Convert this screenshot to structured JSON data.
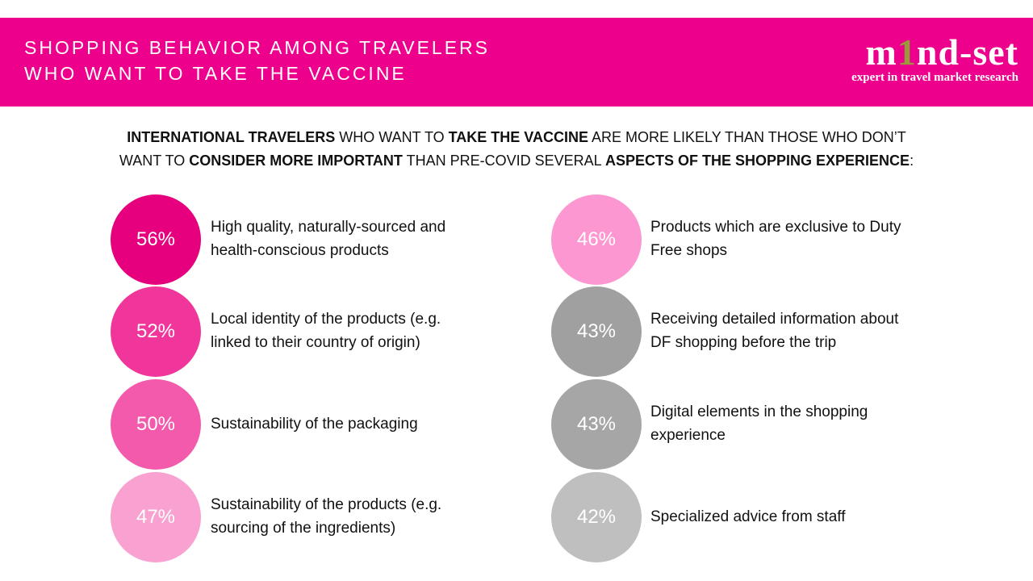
{
  "header": {
    "title_lines": [
      "SHOPPING BEHAVIOR AMONG TRAVELERS",
      "WHO WANT TO TAKE THE VACCINE"
    ],
    "logo": {
      "name_parts": [
        "m",
        "1",
        "nd-set"
      ],
      "tagline": "expert in travel market research"
    }
  },
  "subtitle": [
    [
      {
        "text": "INTERNATIONAL TRAVELERS",
        "bold": true
      },
      {
        "text": " WHO WANT TO ",
        "bold": false
      },
      {
        "text": "TAKE THE VACCINE",
        "bold": true
      },
      {
        "text": " ARE MORE LIKELY THAN THOSE WHO DON’T",
        "bold": false
      }
    ],
    [
      {
        "text": "WANT TO ",
        "bold": false
      },
      {
        "text": "CONSIDER MORE IMPORTANT",
        "bold": true
      },
      {
        "text": " THAN PRE-COVID SEVERAL ",
        "bold": false
      },
      {
        "text": "ASPECTS OF THE SHOPPING EXPERIENCE",
        "bold": true
      },
      {
        "text": ":",
        "bold": false
      }
    ]
  ],
  "columns": [
    [
      {
        "value": "56%",
        "color": "#e6007e",
        "lines": [
          "High quality, naturally-sourced and",
          "health-conscious products"
        ]
      },
      {
        "value": "52%",
        "color": "#f0369a",
        "lines": [
          "Local identity of the products (e.g.",
          "linked to their country of origin)"
        ]
      },
      {
        "value": "50%",
        "color": "#f45aab",
        "lines": [
          "Sustainability of the packaging"
        ]
      },
      {
        "value": "47%",
        "color": "#f9a1d0",
        "lines": [
          "Sustainability of the products (e.g.",
          "sourcing of the ingredients)"
        ]
      }
    ],
    [
      {
        "value": "46%",
        "color": "#fd97d1",
        "lines": [
          "Products which are exclusive to Duty",
          "Free shops"
        ]
      },
      {
        "value": "43%",
        "color": "#a0a0a0",
        "lines": [
          "Receiving detailed information about",
          "DF shopping before the trip"
        ]
      },
      {
        "value": "43%",
        "color": "#a6a6a6",
        "lines": [
          "Digital elements in the shopping",
          "experience"
        ]
      },
      {
        "value": "42%",
        "color": "#bfbfbf",
        "lines": [
          "Specialized advice from staff"
        ]
      }
    ]
  ]
}
